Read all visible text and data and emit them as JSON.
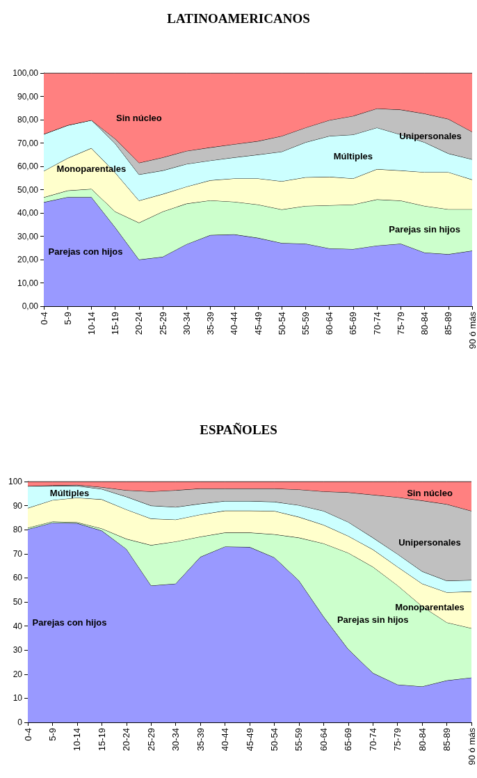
{
  "chart_data": [
    {
      "type": "area",
      "title": "LATINOAMERICANOS",
      "stacked": true,
      "grid": false,
      "legend": false,
      "marker": "none",
      "categories": [
        "0-4",
        "5-9",
        "10-14",
        "15-19",
        "20-24",
        "25-29",
        "30-34",
        "35-39",
        "40-44",
        "45-49",
        "50-54",
        "55-59",
        "60-64",
        "65-69",
        "70-74",
        "75-79",
        "80-84",
        "85-89",
        "90 ó más"
      ],
      "ylim": [
        0,
        100
      ],
      "yticks": [
        {
          "value": 0,
          "label": "0,00"
        },
        {
          "value": 10,
          "label": "10,00"
        },
        {
          "value": 20,
          "label": "20,00"
        },
        {
          "value": 30,
          "label": "30,00"
        },
        {
          "value": 40,
          "label": "40,00"
        },
        {
          "value": 50,
          "label": "50,00"
        },
        {
          "value": 60,
          "label": "60,00"
        },
        {
          "value": 70,
          "label": "70,00"
        },
        {
          "value": 80,
          "label": "80,00"
        },
        {
          "value": 90,
          "label": "90,00"
        },
        {
          "value": 100,
          "label": "100,00"
        }
      ],
      "series": [
        {
          "name": "Parejas con hijos",
          "color": "#9999ff",
          "values": [
            44.6,
            46.8,
            46.8,
            33.8,
            20,
            21.2,
            26.6,
            30.5,
            30.8,
            29.3,
            27.1,
            26.8,
            24.8,
            24.5,
            26,
            26.8,
            23,
            22.3,
            23.8
          ]
        },
        {
          "name": "Parejas sin hijos",
          "color": "#ccffcc",
          "values": [
            2.1,
            2.8,
            3.5,
            6.8,
            15.8,
            19.4,
            17.4,
            14.9,
            14,
            14.3,
            14.4,
            16.2,
            18.5,
            19.1,
            19.8,
            18.5,
            20,
            19.3,
            17.8
          ]
        },
        {
          "name": "Monoparentales",
          "color": "#ffffcc",
          "values": [
            11.3,
            13.9,
            17.5,
            16.7,
            9.5,
            7.5,
            7.3,
            8.6,
            10,
            11.2,
            12.1,
            12.3,
            12.2,
            11.2,
            13,
            12.9,
            14.5,
            15.9,
            12.7
          ]
        },
        {
          "name": "Múltiples",
          "color": "#ccffff",
          "values": [
            15.8,
            14.1,
            12,
            12.5,
            11.2,
            10.1,
            9.7,
            8.5,
            9,
            10.2,
            12.7,
            15,
            17.5,
            18.8,
            17.8,
            15.4,
            12.8,
            8,
            8.7
          ]
        },
        {
          "name": "Unipersonales",
          "color": "#c0c0c0",
          "values": [
            0,
            0,
            0,
            2,
            5,
            5.6,
            5.6,
            5.6,
            5.7,
            5.8,
            6.7,
            6.3,
            6.8,
            8,
            8.2,
            10.7,
            12.3,
            14.8,
            11.8
          ]
        },
        {
          "name": "Sin núcleo",
          "color": "#ff8080",
          "values": [
            26.2,
            22.4,
            20.2,
            28.2,
            38.5,
            36.2,
            33.4,
            31.9,
            30.5,
            29.2,
            27,
            23.4,
            20.2,
            18.4,
            15.2,
            15.7,
            17.4,
            19.7,
            25.2
          ]
        }
      ]
    },
    {
      "type": "area",
      "title": "ESPAÑOLES",
      "stacked": true,
      "grid": false,
      "legend": false,
      "marker": "none",
      "categories": [
        "0-4",
        "5-9",
        "10-14",
        "15-19",
        "20-24",
        "25-29",
        "30-34",
        "35-39",
        "40-44",
        "45-49",
        "50-54",
        "55-59",
        "60-64",
        "65-69",
        "70-74",
        "75-79",
        "80-84",
        "85-89",
        "90 ó más"
      ],
      "ylim": [
        0,
        100
      ],
      "yticks": [
        0,
        10,
        20,
        30,
        40,
        50,
        60,
        70,
        80,
        90,
        100
      ],
      "series": [
        {
          "name": "Parejas con hijos",
          "color": "#9999ff",
          "values": [
            80.2,
            82.9,
            82.7,
            79.6,
            72,
            56.8,
            57.6,
            68.7,
            73,
            72.8,
            68.5,
            58.9,
            43.9,
            30.4,
            20.5,
            15.7,
            14.9,
            17.4,
            18.6
          ]
        },
        {
          "name": "Parejas sin hijos",
          "color": "#ccffcc",
          "values": [
            0.6,
            0.5,
            0.4,
            0.9,
            4.2,
            16.8,
            17.5,
            8.4,
            5.8,
            6,
            9.6,
            17.8,
            30.4,
            40,
            44.1,
            41.2,
            33.3,
            24.1,
            20.5
          ]
        },
        {
          "name": "Monoparentales",
          "color": "#ffffcc",
          "values": [
            8.2,
            8.9,
            10.2,
            12.1,
            12.2,
            11,
            9.1,
            9.2,
            9.1,
            9.1,
            9.7,
            8.6,
            7.7,
            7,
            7.2,
            7.7,
            9.4,
            12.5,
            15.2
          ]
        },
        {
          "name": "Múltiples",
          "color": "#ccffff",
          "values": [
            9.1,
            5.9,
            4.9,
            4.3,
            5.3,
            5.4,
            5.2,
            4.5,
            4,
            4,
            3.8,
            4.9,
            5.8,
            5.8,
            4.9,
            5.3,
            5.1,
            4.8,
            4.8
          ]
        },
        {
          "name": "Unipersonales",
          "color": "#c0c0c0",
          "values": [
            0,
            0.2,
            0.4,
            0.8,
            2.7,
            5.9,
            7,
            6.3,
            5.2,
            5.2,
            5.5,
            6.5,
            8.1,
            12.3,
            17.8,
            23.6,
            29.4,
            31.8,
            28.7
          ]
        },
        {
          "name": "Sin núcleo",
          "color": "#ff8080",
          "values": [
            1.9,
            1.6,
            1.4,
            2.3,
            3.6,
            4.1,
            3.6,
            2.9,
            2.9,
            2.9,
            2.9,
            3.3,
            4.1,
            4.5,
            5.5,
            6.5,
            7.9,
            9.4,
            12.2
          ]
        }
      ]
    }
  ]
}
